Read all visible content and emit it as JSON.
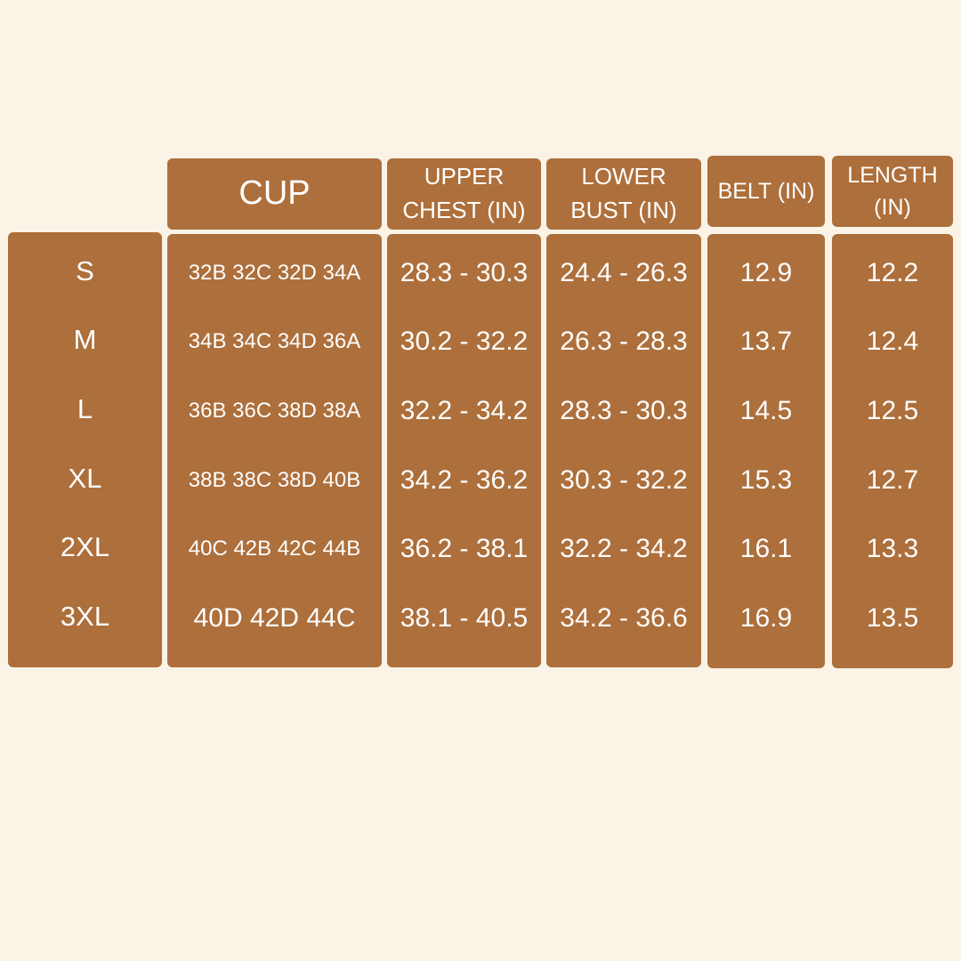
{
  "colors": {
    "background": "#FAF3E6",
    "cell": "#AD6F3B",
    "text": "#FFFFFF"
  },
  "headers": {
    "cup": "CUP",
    "upper_chest": [
      "UPPER",
      "CHEST (IN)"
    ],
    "lower_bust": [
      "LOWER",
      "BUST (IN)"
    ],
    "belt": "BELT (IN)",
    "length": [
      "LENGTH",
      "(IN)"
    ]
  },
  "columns": {
    "size": [
      "S",
      "M",
      "L",
      "XL",
      "2XL",
      "3XL"
    ],
    "cup": [
      "32B 32C 32D 34A",
      "34B 34C 34D 36A",
      "36B 36C 38D 38A",
      "38B 38C 38D 40B",
      "40C 42B 42C 44B",
      "40D 42D 44C"
    ],
    "upper_chest": [
      "28.3 - 30.3",
      "30.2 - 32.2",
      "32.2 - 34.2",
      "34.2 - 36.2",
      "36.2 - 38.1",
      "38.1 - 40.5"
    ],
    "lower_bust": [
      "24.4 - 26.3",
      "26.3 - 28.3",
      "28.3 - 30.3",
      "30.3 - 32.2",
      "32.2 - 34.2",
      "34.2 - 36.6"
    ],
    "belt": [
      "12.9",
      "13.7",
      "14.5",
      "15.3",
      "16.1",
      "16.9"
    ],
    "length": [
      "12.2",
      "12.4",
      "12.5",
      "12.7",
      "13.3",
      "13.5"
    ]
  }
}
